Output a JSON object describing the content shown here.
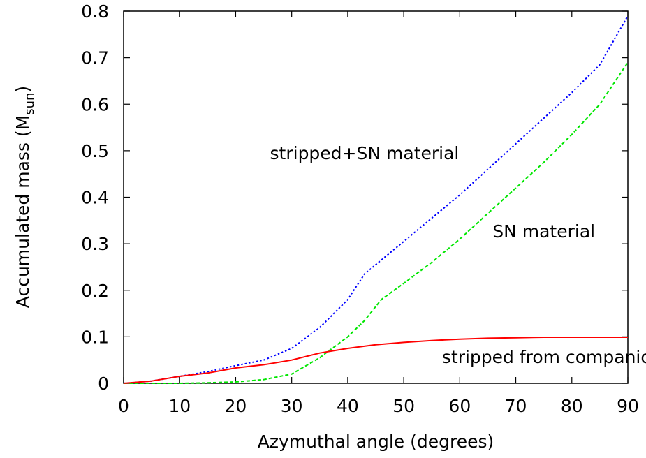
{
  "chart_data": {
    "type": "line",
    "title": "",
    "xlabel": "Azymuthal angle (degrees)",
    "ylabel": {
      "prefix": "Accumulated mass (M",
      "subscript": "sun",
      "suffix": ")"
    },
    "xlim": [
      0,
      90
    ],
    "ylim": [
      0,
      0.8
    ],
    "xticks": [
      0,
      10,
      20,
      30,
      40,
      50,
      60,
      70,
      80,
      90
    ],
    "yticks": [
      0,
      0.1,
      0.2,
      0.3,
      0.4,
      0.5,
      0.6,
      0.7,
      0.8
    ],
    "xtick_labels": [
      "0",
      "10",
      "20",
      "30",
      "40",
      "50",
      "60",
      "70",
      "80",
      "90"
    ],
    "ytick_labels": [
      "0",
      "0.1",
      "0.2",
      "0.3",
      "0.4",
      "0.5",
      "0.6",
      "0.7",
      "0.8"
    ],
    "grid": false,
    "legend": "none",
    "series": [
      {
        "key": "stripped_sn",
        "color": "#0000ff",
        "style": "dotted",
        "x": [
          0,
          5,
          10,
          15,
          20,
          25,
          30,
          35,
          40,
          43,
          45,
          50,
          55,
          60,
          65,
          70,
          75,
          80,
          85,
          90
        ],
        "y": [
          0,
          0.005,
          0.015,
          0.025,
          0.038,
          0.05,
          0.075,
          0.12,
          0.18,
          0.235,
          0.255,
          0.305,
          0.355,
          0.405,
          0.46,
          0.515,
          0.57,
          0.625,
          0.685,
          0.79
        ]
      },
      {
        "key": "sn",
        "color": "#00e600",
        "style": "dashed",
        "x": [
          0,
          10,
          15,
          20,
          25,
          30,
          35,
          40,
          43,
          46,
          50,
          55,
          60,
          65,
          70,
          75,
          80,
          85,
          90
        ],
        "y": [
          0,
          0.0,
          0.001,
          0.003,
          0.008,
          0.02,
          0.055,
          0.1,
          0.135,
          0.18,
          0.215,
          0.26,
          0.31,
          0.365,
          0.42,
          0.475,
          0.535,
          0.6,
          0.69
        ]
      },
      {
        "key": "stripped",
        "color": "#ff0000",
        "style": "solid",
        "x": [
          0,
          5,
          10,
          15,
          20,
          25,
          30,
          35,
          40,
          45,
          50,
          55,
          60,
          65,
          70,
          75,
          80,
          85,
          90
        ],
        "y": [
          0,
          0.005,
          0.015,
          0.022,
          0.033,
          0.04,
          0.05,
          0.065,
          0.075,
          0.083,
          0.088,
          0.092,
          0.095,
          0.097,
          0.098,
          0.099,
          0.099,
          0.099,
          0.099
        ]
      }
    ],
    "annotations": [
      {
        "text": "stripped+SN material",
        "x": 43,
        "y": 0.495
      },
      {
        "text": "SN material",
        "x": 75,
        "y": 0.327
      },
      {
        "text": "stripped from companion",
        "x": 76.5,
        "y": 0.057
      }
    ]
  }
}
